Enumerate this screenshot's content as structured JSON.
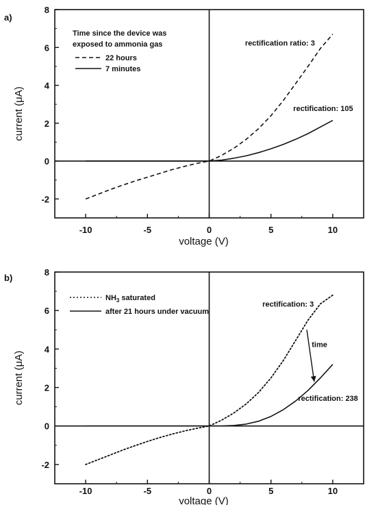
{
  "chart_data": [
    {
      "type": "line",
      "panel_label": "a)",
      "xlabel": "voltage (V)",
      "ylabel": "current (μA)",
      "xlim": [
        -12.5,
        12.5
      ],
      "ylim": [
        -3,
        8
      ],
      "xticks": [
        -10,
        -5,
        0,
        5,
        10
      ],
      "yticks": [
        -2,
        0,
        2,
        4,
        6,
        8
      ],
      "legend_title": [
        "Time since the device was",
        "exposed to ammonia gas"
      ],
      "series": [
        {
          "name": "22 hours",
          "style": "dashed",
          "x": [
            -10,
            -9,
            -8,
            -7,
            -6,
            -5,
            -4,
            -3,
            -2,
            -1,
            0,
            1,
            2,
            3,
            4,
            5,
            6,
            7,
            8,
            9,
            10
          ],
          "y": [
            -2.0,
            -1.75,
            -1.5,
            -1.27,
            -1.05,
            -0.85,
            -0.65,
            -0.45,
            -0.28,
            -0.12,
            0,
            0.3,
            0.68,
            1.15,
            1.72,
            2.4,
            3.2,
            4.1,
            5.0,
            5.95,
            6.7
          ]
        },
        {
          "name": "7 minutes",
          "style": "solid",
          "x": [
            -10,
            -8,
            -6,
            -4,
            -2,
            0,
            1,
            2,
            3,
            4,
            5,
            6,
            7,
            8,
            9,
            10
          ],
          "y": [
            0,
            0,
            0,
            0,
            0,
            0,
            0.05,
            0.15,
            0.28,
            0.45,
            0.65,
            0.88,
            1.15,
            1.45,
            1.8,
            2.15
          ]
        }
      ],
      "annotations": [
        {
          "text": "rectification ratio: 3",
          "x": 2.9,
          "y": 6.1
        },
        {
          "text": "rectification: 105",
          "x": 6.8,
          "y": 2.65
        }
      ]
    },
    {
      "type": "line",
      "panel_label": "b)",
      "xlabel": "voltage (V)",
      "ylabel": "current (μA)",
      "xlim": [
        -12.5,
        12.5
      ],
      "ylim": [
        -3,
        8
      ],
      "xticks": [
        -10,
        -5,
        0,
        5,
        10
      ],
      "yticks": [
        -2,
        0,
        2,
        4,
        6,
        8
      ],
      "series": [
        {
          "name": "NH3 saturated",
          "style": "dotted",
          "x": [
            -10,
            -9,
            -8,
            -7,
            -6,
            -5,
            -4,
            -3,
            -2,
            -1,
            0,
            1,
            2,
            3,
            4,
            5,
            6,
            7,
            8,
            9,
            10
          ],
          "y": [
            -2.0,
            -1.75,
            -1.5,
            -1.25,
            -1.02,
            -0.8,
            -0.6,
            -0.42,
            -0.26,
            -0.12,
            0,
            0.3,
            0.68,
            1.15,
            1.75,
            2.5,
            3.4,
            4.45,
            5.5,
            6.35,
            6.8
          ]
        },
        {
          "name": "after 21 hours under vacuum",
          "style": "solid",
          "x": [
            -10,
            -8,
            -6,
            -4,
            -2,
            0,
            1,
            2,
            3,
            4,
            5,
            6,
            7,
            8,
            9,
            10
          ],
          "y": [
            0,
            0,
            0,
            0,
            0,
            0,
            0,
            0.03,
            0.1,
            0.25,
            0.5,
            0.85,
            1.3,
            1.85,
            2.5,
            3.2
          ]
        }
      ],
      "annotations": [
        {
          "text": "rectification: 3",
          "x": 4.3,
          "y": 6.2
        },
        {
          "text": "time",
          "x": 8.3,
          "y": 4.1
        },
        {
          "text": "rectification: 238",
          "x": 7.2,
          "y": 1.3
        }
      ],
      "arrow": {
        "from": [
          7.9,
          5.0
        ],
        "to": [
          8.5,
          2.3
        ]
      }
    }
  ]
}
